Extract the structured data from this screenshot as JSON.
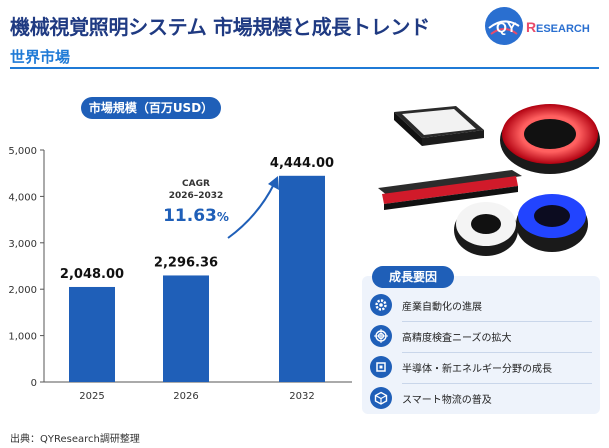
{
  "header": {
    "title": "機械視覚照明システム 市場規模と成長トレンド",
    "subtitle": "世界市場",
    "logo_text_a": "QY",
    "logo_text_b": "R",
    "logo_text_c": "ESEARCH"
  },
  "metric_label": "市場規模（百万USD）",
  "chart_data": {
    "type": "bar",
    "categories": [
      "2025",
      "2026",
      "2032"
    ],
    "values": [
      2048.0,
      2296.36,
      4444.0
    ],
    "value_labels": [
      "2,048.00",
      "2,296.36",
      "4,444.00"
    ],
    "ylim": [
      0,
      5000
    ],
    "yticks": [
      0,
      1000,
      2000,
      3000,
      4000,
      5000
    ],
    "ytick_labels": [
      "0",
      "1,000",
      "2,000",
      "3,000",
      "4,000",
      "5,000"
    ],
    "grid": false,
    "bar_color": "#1f5fb8",
    "annotation": {
      "line1": "CAGR",
      "line2": "2026–2032",
      "value": "11.63",
      "unit": "%"
    }
  },
  "growth_factors": {
    "title": "成長要因",
    "items": [
      {
        "label": "産業自動化の進展",
        "icon": "gear-icon"
      },
      {
        "label": "高精度検査ニーズの拡大",
        "icon": "target-icon"
      },
      {
        "label": "半導体・新エネルギー分野の成長",
        "icon": "chip-icon"
      },
      {
        "label": "スマート物流の普及",
        "icon": "box-icon"
      }
    ]
  },
  "source": "出典：QYResearch調研整理"
}
